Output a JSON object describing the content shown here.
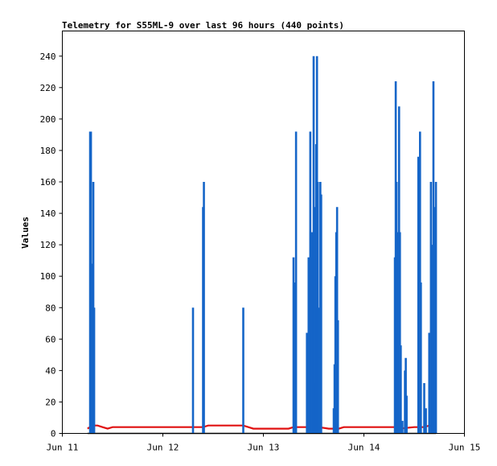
{
  "chart_data": {
    "type": "line",
    "title": "Telemetry for S55ML-9 over last 96 hours (440 points)",
    "xlabel": "",
    "ylabel": "Values",
    "x_ticks": [
      "Jun 11",
      "Jun 12",
      "Jun 13",
      "Jun 14",
      "Jun 15"
    ],
    "y_ticks": [
      "0",
      "20",
      "40",
      "60",
      "80",
      "100",
      "120",
      "140",
      "160",
      "180",
      "200",
      "220",
      "240"
    ],
    "xlim": [
      "Jun 11 00:00",
      "Jun 15 00:00"
    ],
    "ylim": [
      0,
      256
    ],
    "grid": false,
    "legend": "none",
    "colors": {
      "blue_series": "#1565c8",
      "red_series": "#e01010",
      "black_series": "#000000",
      "frame": "#000000"
    },
    "series": [
      {
        "color": "blue",
        "style": "spikes",
        "points": [
          [
            "Jun 11 06:38",
            192
          ],
          [
            "Jun 11 06:50",
            192
          ],
          [
            "Jun 11 07:00",
            108
          ],
          [
            "Jun 11 07:12",
            80
          ],
          [
            "Jun 11 07:24",
            160
          ],
          [
            "Jun 11 07:36",
            80
          ],
          [
            "Jun 12 07:12",
            80
          ],
          [
            "Jun 12 09:36",
            144
          ],
          [
            "Jun 12 09:48",
            160
          ],
          [
            "Jun 12 19:12",
            80
          ],
          [
            "Jun 13 07:12",
            112
          ],
          [
            "Jun 13 07:36",
            96
          ],
          [
            "Jun 13 07:48",
            192
          ],
          [
            "Jun 13 10:24",
            64
          ],
          [
            "Jun 13 10:48",
            112
          ],
          [
            "Jun 13 11:00",
            48
          ],
          [
            "Jun 13 11:12",
            192
          ],
          [
            "Jun 13 11:36",
            128
          ],
          [
            "Jun 13 12:00",
            240
          ],
          [
            "Jun 13 12:12",
            144
          ],
          [
            "Jun 13 12:24",
            32
          ],
          [
            "Jun 13 12:36",
            184
          ],
          [
            "Jun 13 12:48",
            240
          ],
          [
            "Jun 13 13:00",
            160
          ],
          [
            "Jun 13 13:12",
            80
          ],
          [
            "Jun 13 13:24",
            48
          ],
          [
            "Jun 13 13:36",
            160
          ],
          [
            "Jun 13 13:48",
            152
          ],
          [
            "Jun 13 16:48",
            16
          ],
          [
            "Jun 13 17:00",
            44
          ],
          [
            "Jun 13 17:12",
            100
          ],
          [
            "Jun 13 17:24",
            128
          ],
          [
            "Jun 13 17:36",
            144
          ],
          [
            "Jun 13 17:48",
            72
          ],
          [
            "Jun 14 07:24",
            112
          ],
          [
            "Jun 14 07:36",
            224
          ],
          [
            "Jun 14 07:48",
            160
          ],
          [
            "Jun 14 08:00",
            64
          ],
          [
            "Jun 14 08:12",
            128
          ],
          [
            "Jun 14 08:24",
            208
          ],
          [
            "Jun 14 08:36",
            128
          ],
          [
            "Jun 14 08:48",
            56
          ],
          [
            "Jun 14 09:12",
            8
          ],
          [
            "Jun 14 09:48",
            40
          ],
          [
            "Jun 14 10:00",
            48
          ],
          [
            "Jun 14 10:12",
            24
          ],
          [
            "Jun 14 13:00",
            176
          ],
          [
            "Jun 14 13:12",
            96
          ],
          [
            "Jun 14 13:24",
            192
          ],
          [
            "Jun 14 13:36",
            96
          ],
          [
            "Jun 14 14:24",
            32
          ],
          [
            "Jun 14 14:48",
            16
          ],
          [
            "Jun 14 15:36",
            64
          ],
          [
            "Jun 14 15:48",
            48
          ],
          [
            "Jun 14 16:00",
            160
          ],
          [
            "Jun 14 16:12",
            40
          ],
          [
            "Jun 14 16:24",
            120
          ],
          [
            "Jun 14 16:36",
            224
          ],
          [
            "Jun 14 16:48",
            112
          ],
          [
            "Jun 14 17:00",
            144
          ],
          [
            "Jun 14 17:12",
            160
          ]
        ]
      },
      {
        "color": "red",
        "style": "line",
        "points": [
          [
            "Jun 11 06:00",
            3
          ],
          [
            "Jun 11 07:12",
            5
          ],
          [
            "Jun 11 08:24",
            5
          ],
          [
            "Jun 11 09:36",
            4
          ],
          [
            "Jun 11 10:48",
            3
          ],
          [
            "Jun 11 12:00",
            4
          ],
          [
            "Jun 12 06:00",
            4
          ],
          [
            "Jun 12 09:36",
            4
          ],
          [
            "Jun 12 10:48",
            5
          ],
          [
            "Jun 12 19:12",
            5
          ],
          [
            "Jun 12 20:24",
            4
          ],
          [
            "Jun 12 21:36",
            3
          ],
          [
            "Jun 13 06:00",
            3
          ],
          [
            "Jun 13 07:12",
            4
          ],
          [
            "Jun 13 13:12",
            4
          ],
          [
            "Jun 13 15:36",
            3
          ],
          [
            "Jun 13 18:00",
            3
          ],
          [
            "Jun 13 19:12",
            4
          ],
          [
            "Jun 13 20:24",
            4
          ],
          [
            "Jun 14 06:00",
            4
          ],
          [
            "Jun 14 07:12",
            4
          ],
          [
            "Jun 14 08:24",
            3
          ],
          [
            "Jun 14 12:00",
            4
          ],
          [
            "Jun 14 14:24",
            4
          ],
          [
            "Jun 14 15:36",
            5
          ],
          [
            "Jun 14 17:12",
            5
          ]
        ]
      },
      {
        "color": "black",
        "style": "line",
        "points": [
          [
            "Jun 11 06:00",
            0
          ],
          [
            "Jun 14 17:12",
            0
          ]
        ]
      }
    ]
  }
}
